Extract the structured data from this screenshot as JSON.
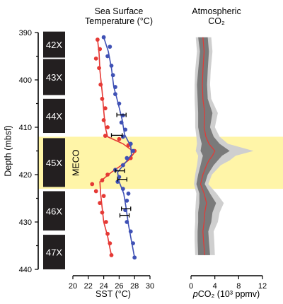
{
  "chart_data": [
    {
      "type": "scatter",
      "panel": "depth-cores",
      "ylabel": "Depth (mbsf)",
      "ylim": [
        390,
        440
      ],
      "y_ticks": [
        "390",
        "400",
        "410",
        "420",
        "430",
        "440"
      ],
      "cores": [
        {
          "label": "42X",
          "top": 389.8,
          "bottom": 395.3
        },
        {
          "label": "43X",
          "top": 395.6,
          "bottom": 403.2
        },
        {
          "label": "44X",
          "top": 404.0,
          "bottom": 411.2
        },
        {
          "label": "45X",
          "top": 412.3,
          "bottom": 422.6
        },
        {
          "label": "46X",
          "top": 423.5,
          "bottom": 431.8
        },
        {
          "label": "47X",
          "top": 432.7,
          "bottom": 440.0
        }
      ],
      "event": {
        "label": "MECO",
        "top": 412.0,
        "bottom": 423.0,
        "color": "#fff5a8"
      }
    },
    {
      "type": "line",
      "panel": "sst",
      "title_lines": [
        "Sea Surface",
        "Temperature (°C)"
      ],
      "xlabel": "SST (°C)",
      "xlim": [
        20,
        30
      ],
      "x_ticks": [
        "20",
        "22",
        "24",
        "26",
        "28",
        "30"
      ],
      "series": [
        {
          "color": "#e53935",
          "points": [
            [
              23.2,
              391.5
            ],
            [
              23.5,
              393.5
            ],
            [
              23.0,
              395.5
            ],
            [
              23.4,
              397.5
            ],
            [
              23.6,
              401.0
            ],
            [
              23.8,
              404.0
            ],
            [
              24.2,
              406.0
            ],
            [
              24.0,
              408.5
            ],
            [
              24.5,
              410.0
            ],
            [
              24.2,
              411.8
            ],
            [
              26.0,
              412.5
            ],
            [
              27.2,
              413.8
            ],
            [
              28.0,
              415.0
            ],
            [
              27.5,
              416.5
            ],
            [
              26.5,
              418.0
            ],
            [
              25.5,
              419.0
            ],
            [
              24.5,
              420.0
            ],
            [
              23.8,
              421.2
            ],
            [
              22.5,
              422.0
            ],
            [
              23.0,
              423.5
            ],
            [
              24.0,
              424.5
            ],
            [
              23.5,
              426.0
            ],
            [
              23.8,
              428.0
            ],
            [
              24.3,
              430.0
            ],
            [
              24.5,
              432.5
            ],
            [
              24.8,
              434.5
            ],
            [
              25.0,
              437.0
            ]
          ],
          "line": [
            [
              23.2,
              391.5
            ],
            [
              23.4,
              394.5
            ],
            [
              23.5,
              398
            ],
            [
              23.8,
              402.5
            ],
            [
              24.0,
              406.5
            ],
            [
              24.2,
              410.0
            ],
            [
              24.5,
              412.0
            ],
            [
              26.5,
              413.5
            ],
            [
              28.0,
              415.3
            ],
            [
              27.2,
              417.0
            ],
            [
              25.0,
              419.5
            ],
            [
              23.5,
              421.5
            ],
            [
              23.6,
              424.0
            ],
            [
              23.8,
              427.0
            ],
            [
              24.0,
              430.0
            ],
            [
              24.5,
              433.0
            ],
            [
              24.8,
              435.5
            ],
            [
              25.0,
              437.0
            ]
          ]
        },
        {
          "color": "#3f51b5",
          "points": [
            [
              24.0,
              391.0
            ],
            [
              24.8,
              393.0
            ],
            [
              24.5,
              395.0
            ],
            [
              25.0,
              397.0
            ],
            [
              25.2,
              399.0
            ],
            [
              25.5,
              401.5
            ],
            [
              25.5,
              403.0
            ],
            [
              26.0,
              405.0
            ],
            [
              26.5,
              407.5
            ],
            [
              26.3,
              409.0
            ],
            [
              26.8,
              410.5
            ],
            [
              26.5,
              412.0
            ],
            [
              27.5,
              413.5
            ],
            [
              27.8,
              415.0
            ],
            [
              27.0,
              416.5
            ],
            [
              26.5,
              418.0
            ],
            [
              25.5,
              419.0
            ],
            [
              26.0,
              420.5
            ],
            [
              25.8,
              421.5
            ],
            [
              26.5,
              423.0
            ],
            [
              27.2,
              424.0
            ],
            [
              27.0,
              425.5
            ],
            [
              26.8,
              427.5
            ],
            [
              27.0,
              430.0
            ],
            [
              27.5,
              432.0
            ],
            [
              27.8,
              434.5
            ],
            [
              28.0,
              437.5
            ]
          ],
          "line": [
            [
              24.0,
              391.0
            ],
            [
              24.6,
              394.0
            ],
            [
              25.0,
              397.5
            ],
            [
              25.3,
              401.5
            ],
            [
              25.8,
              404.5
            ],
            [
              26.4,
              408.5
            ],
            [
              26.7,
              411.5
            ],
            [
              27.5,
              414.0
            ],
            [
              27.6,
              415.8
            ],
            [
              26.8,
              417.5
            ],
            [
              25.8,
              419.5
            ],
            [
              26.0,
              421.5
            ],
            [
              26.6,
              424.0
            ],
            [
              26.9,
              427.0
            ],
            [
              27.2,
              430.5
            ],
            [
              27.6,
              434.0
            ],
            [
              28.0,
              437.5
            ]
          ]
        }
      ],
      "error_bars": [
        {
          "x": 26.3,
          "y": 407.4,
          "err": 0.6
        },
        {
          "x": 25.7,
          "y": 411.7,
          "err": 0.7
        },
        {
          "x": 26.1,
          "y": 419.2,
          "err": 0.6
        },
        {
          "x": 26.4,
          "y": 421.0,
          "err": 0.6
        },
        {
          "x": 26.9,
          "y": 427.2,
          "err": 0.6
        },
        {
          "x": 26.7,
          "y": 428.6,
          "err": 0.6
        }
      ],
      "event_label": "MECO"
    },
    {
      "type": "area",
      "panel": "pco2",
      "title_lines": [
        "Atmospheric",
        "CO₂"
      ],
      "xlabel_prefix": "p",
      "xlabel_main": "CO₂ (10³ ppmv)",
      "xlim": [
        0,
        12
      ],
      "x_ticks": [
        "0",
        "4",
        "8",
        "12"
      ],
      "depth": [
        391,
        394,
        398,
        401,
        404,
        407,
        410,
        412,
        413.5,
        415,
        416,
        417,
        418,
        420,
        422,
        424,
        426,
        428,
        430,
        432,
        434,
        437
      ],
      "median": [
        2.0,
        2.2,
        2.0,
        1.9,
        2.0,
        2.3,
        2.2,
        2.5,
        3.0,
        4.0,
        3.6,
        3.0,
        2.6,
        2.0,
        1.6,
        2.2,
        2.6,
        2.3,
        2.2,
        2.0,
        2.1,
        2.3
      ],
      "inner_lo": [
        1.2,
        1.5,
        1.2,
        1.0,
        1.1,
        1.2,
        1.2,
        1.5,
        1.8,
        1.6,
        2.0,
        1.8,
        1.6,
        1.2,
        0.9,
        1.4,
        1.4,
        1.2,
        1.2,
        1.1,
        1.1,
        1.2
      ],
      "inner_hi": [
        2.8,
        3.0,
        2.8,
        2.7,
        2.8,
        3.6,
        3.2,
        3.8,
        4.8,
        6.5,
        5.2,
        4.5,
        3.8,
        2.8,
        2.3,
        3.2,
        4.2,
        3.6,
        3.4,
        2.9,
        3.0,
        3.2
      ],
      "outer_lo": [
        0.8,
        1.0,
        0.7,
        0.6,
        0.6,
        0.7,
        0.7,
        0.9,
        1.0,
        0.8,
        1.2,
        1.1,
        1.0,
        0.7,
        0.5,
        0.9,
        0.8,
        0.7,
        0.7,
        0.6,
        0.6,
        0.7
      ],
      "outer_hi": [
        3.4,
        3.6,
        3.3,
        3.2,
        3.4,
        4.5,
        4.0,
        4.8,
        6.2,
        10.5,
        7.5,
        6.5,
        5.0,
        3.5,
        2.9,
        4.3,
        5.5,
        4.8,
        4.5,
        3.8,
        3.9,
        4.0
      ],
      "colors": {
        "outer": "#cfcfcf",
        "inner": "#7a7a7a",
        "median": "#e53935"
      }
    }
  ]
}
